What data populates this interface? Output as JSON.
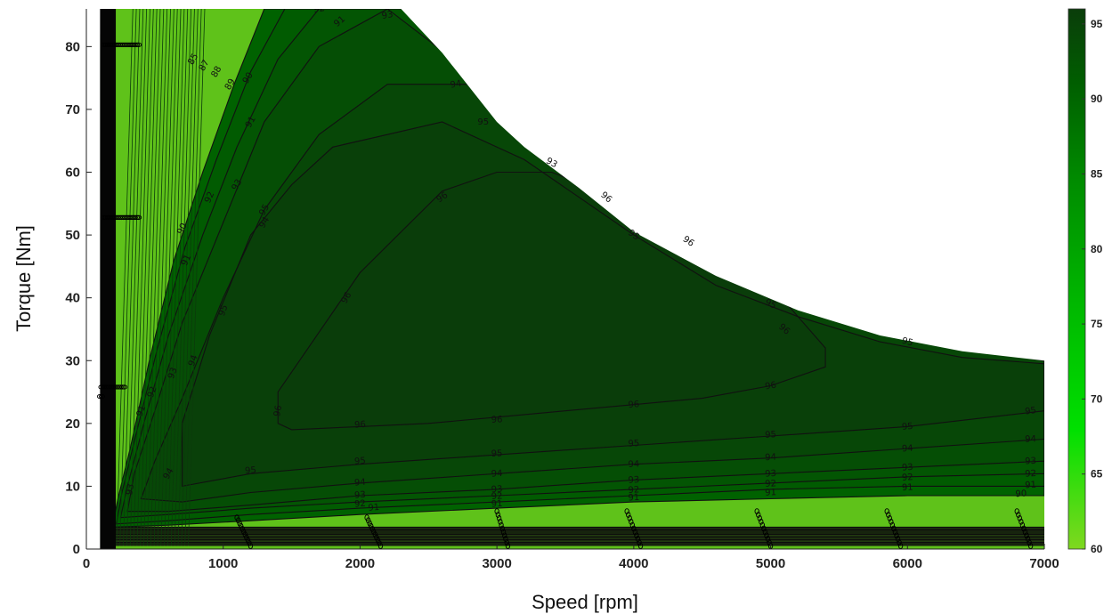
{
  "chart_data": {
    "type": "contour",
    "title": "",
    "xlabel": "Speed [rpm]",
    "ylabel": "Torque [Nm]",
    "xlim": [
      0,
      7000
    ],
    "ylim": [
      0,
      86
    ],
    "xticks": [
      0,
      1000,
      2000,
      3000,
      4000,
      5000,
      6000,
      7000
    ],
    "yticks": [
      0,
      10,
      20,
      30,
      40,
      50,
      60,
      70,
      80
    ],
    "grid": false,
    "colorbar": {
      "range": [
        60,
        96
      ],
      "ticks": [
        60,
        65,
        70,
        75,
        80,
        85,
        90,
        95
      ],
      "colors": [
        "#7fd81f",
        "#00e000",
        "#00b800",
        "#008c00",
        "#005f00",
        "#0a3d0a"
      ]
    },
    "torque_envelope": {
      "x": [
        100,
        100,
        150,
        300,
        700,
        1200,
        1700,
        2000,
        2300,
        2600,
        3000,
        3200,
        3600,
        4000,
        4600,
        5200,
        5800,
        6400,
        7000,
        7000
      ],
      "y": [
        0,
        82,
        86,
        86,
        86,
        86,
        86,
        86,
        86,
        79,
        68,
        64,
        57.5,
        50.5,
        43.5,
        38,
        34,
        31.5,
        30,
        0
      ]
    },
    "contours": [
      {
        "level": 96,
        "x": [
          1400,
          1400,
          2000,
          2600,
          3000,
          3400,
          4000,
          4600,
          5000,
          5400,
          5400,
          5000,
          4500,
          4000,
          3500,
          3000,
          2500,
          2000,
          1500,
          1400
        ],
        "y": [
          20,
          25,
          44,
          57,
          60,
          60,
          55,
          48,
          42,
          32,
          29,
          26,
          24,
          23,
          22,
          21,
          20,
          19.5,
          19,
          20
        ]
      },
      {
        "level": 95,
        "x": [
          700,
          700,
          900,
          1200,
          1500,
          1800,
          2200,
          2600,
          3000,
          3200,
          3600,
          4000,
          4600,
          5200,
          5800,
          6400,
          7000,
          7000,
          6000,
          5000,
          4000,
          3000,
          2000,
          1200,
          700
        ],
        "y": [
          10,
          20,
          34,
          50,
          58,
          64,
          66,
          68,
          64,
          62,
          56,
          50,
          42,
          37,
          33,
          30.5,
          29.5,
          22,
          19.5,
          18,
          16.5,
          15,
          13.5,
          12,
          10
        ]
      },
      {
        "level": 94,
        "x": [
          400,
          500,
          700,
          1000,
          1300,
          1700,
          2200,
          2800,
          3200,
          3600,
          4000,
          4600,
          5200,
          5800,
          6400,
          7000,
          7000,
          6000,
          5000,
          4000,
          3000,
          2000,
          1200,
          700,
          400
        ],
        "y": [
          8,
          14,
          24,
          40,
          54,
          66,
          74,
          74,
          68,
          60,
          54,
          46,
          40,
          35,
          32,
          30,
          17.5,
          16,
          14.5,
          13.5,
          12,
          10.5,
          9,
          7.5,
          8
        ]
      },
      {
        "level": 93,
        "x": [
          300,
          350,
          500,
          700,
          1000,
          1300,
          1700,
          2200,
          2800,
          3200,
          3600,
          4100,
          4700,
          5300,
          5900,
          6500,
          7000,
          7000,
          6000,
          5000,
          4000,
          3000,
          2000,
          1200,
          600,
          300
        ],
        "y": [
          6,
          12,
          22,
          36,
          52,
          68,
          80,
          86,
          76,
          68,
          61,
          54,
          46,
          40,
          35,
          32,
          30,
          14,
          13,
          12,
          11,
          9.5,
          8.5,
          7,
          6,
          6
        ]
      },
      {
        "level": 92,
        "x": [
          250,
          300,
          420,
          600,
          850,
          1100,
          1400,
          1700,
          7000,
          7000,
          6000,
          5000,
          4000,
          3000,
          2000,
          1200,
          600,
          250
        ],
        "y": [
          5,
          10,
          20,
          34,
          50,
          64,
          78,
          86,
          86,
          12,
          11.5,
          10.5,
          9.5,
          8.5,
          7.5,
          6.5,
          5.5,
          5
        ]
      },
      {
        "level": 91,
        "x": [
          220,
          260,
          360,
          520,
          720,
          950,
          1200,
          1450,
          7000,
          7000,
          6000,
          5000,
          4000,
          3000,
          2000,
          1200,
          600,
          220
        ],
        "y": [
          4,
          9,
          18,
          32,
          48,
          62,
          76,
          86,
          86,
          10,
          10,
          9.5,
          8.5,
          7.5,
          6.5,
          5.5,
          4.5,
          4
        ]
      },
      {
        "level": 90,
        "x": [
          190,
          230,
          320,
          460,
          640,
          850,
          1080,
          1300,
          7000,
          7000,
          6000,
          5000,
          4000,
          3000,
          2000,
          1200,
          600,
          190
        ],
        "y": [
          3.5,
          8,
          16,
          30,
          46,
          60,
          74,
          86,
          86,
          8.5,
          8.5,
          8,
          7.5,
          6.5,
          5.5,
          4.5,
          3.8,
          3.5
        ]
      }
    ],
    "contour_labels": [
      {
        "text": "96",
        "x": 2000,
        "y": 19.8,
        "rot": -3
      },
      {
        "text": "96",
        "x": 3000,
        "y": 20.6,
        "rot": -3
      },
      {
        "text": "96",
        "x": 4000,
        "y": 23,
        "rot": -4
      },
      {
        "text": "96",
        "x": 5000,
        "y": 26,
        "rot": -10
      },
      {
        "text": "96",
        "x": 1400,
        "y": 22,
        "rot": -80
      },
      {
        "text": "96",
        "x": 1900,
        "y": 40,
        "rot": -60
      },
      {
        "text": "96",
        "x": 2600,
        "y": 56,
        "rot": -35
      },
      {
        "text": "96",
        "x": 3800,
        "y": 56,
        "rot": 40
      },
      {
        "text": "96",
        "x": 4400,
        "y": 49,
        "rot": 35
      },
      {
        "text": "96",
        "x": 5100,
        "y": 35,
        "rot": 40
      },
      {
        "text": "95",
        "x": 1200,
        "y": 12.5,
        "rot": -5
      },
      {
        "text": "95",
        "x": 2000,
        "y": 14,
        "rot": -4
      },
      {
        "text": "95",
        "x": 3000,
        "y": 15.2,
        "rot": -3
      },
      {
        "text": "95",
        "x": 4000,
        "y": 16.8,
        "rot": -3
      },
      {
        "text": "95",
        "x": 5000,
        "y": 18.2,
        "rot": -3
      },
      {
        "text": "95",
        "x": 6000,
        "y": 19.5,
        "rot": -5
      },
      {
        "text": "95",
        "x": 6900,
        "y": 22,
        "rot": -8
      },
      {
        "text": "95",
        "x": 1000,
        "y": 38,
        "rot": -70
      },
      {
        "text": "95",
        "x": 1300,
        "y": 54,
        "rot": -60
      },
      {
        "text": "95",
        "x": 2900,
        "y": 68,
        "rot": 0
      },
      {
        "text": "95",
        "x": 4000,
        "y": 50,
        "rot": 35
      },
      {
        "text": "95",
        "x": 5000,
        "y": 39,
        "rot": 25
      },
      {
        "text": "95",
        "x": 6000,
        "y": 33,
        "rot": 15
      },
      {
        "text": "94",
        "x": 2000,
        "y": 10.6,
        "rot": -4
      },
      {
        "text": "94",
        "x": 3000,
        "y": 12,
        "rot": -3
      },
      {
        "text": "94",
        "x": 4000,
        "y": 13.5,
        "rot": -3
      },
      {
        "text": "94",
        "x": 5000,
        "y": 14.6,
        "rot": -3
      },
      {
        "text": "94",
        "x": 6000,
        "y": 16,
        "rot": -3
      },
      {
        "text": "94",
        "x": 6900,
        "y": 17.5,
        "rot": -3
      },
      {
        "text": "94",
        "x": 600,
        "y": 12,
        "rot": -60
      },
      {
        "text": "94",
        "x": 780,
        "y": 30,
        "rot": -70
      },
      {
        "text": "94",
        "x": 1300,
        "y": 52,
        "rot": -60
      },
      {
        "text": "94",
        "x": 2700,
        "y": 74,
        "rot": -10
      },
      {
        "text": "93",
        "x": 2000,
        "y": 8.6,
        "rot": -4
      },
      {
        "text": "93",
        "x": 3000,
        "y": 9.5,
        "rot": -3
      },
      {
        "text": "93",
        "x": 4000,
        "y": 11,
        "rot": -3
      },
      {
        "text": "93",
        "x": 5000,
        "y": 12,
        "rot": -3
      },
      {
        "text": "93",
        "x": 6000,
        "y": 13,
        "rot": -3
      },
      {
        "text": "93",
        "x": 6900,
        "y": 14,
        "rot": -3
      },
      {
        "text": "93",
        "x": 320,
        "y": 9.5,
        "rot": -80
      },
      {
        "text": "93",
        "x": 630,
        "y": 28,
        "rot": -70
      },
      {
        "text": "93",
        "x": 1100,
        "y": 58,
        "rot": -60
      },
      {
        "text": "93",
        "x": 2200,
        "y": 85,
        "rot": -10
      },
      {
        "text": "93",
        "x": 3400,
        "y": 61.5,
        "rot": 30
      },
      {
        "text": "92",
        "x": 2000,
        "y": 7.2,
        "rot": -4
      },
      {
        "text": "92",
        "x": 3000,
        "y": 8.4,
        "rot": -3
      },
      {
        "text": "92",
        "x": 4000,
        "y": 9.4,
        "rot": -3
      },
      {
        "text": "92",
        "x": 5000,
        "y": 10.4,
        "rot": -3
      },
      {
        "text": "92",
        "x": 6000,
        "y": 11.4,
        "rot": -3
      },
      {
        "text": "92",
        "x": 6900,
        "y": 12,
        "rot": -3
      },
      {
        "text": "92",
        "x": 480,
        "y": 25,
        "rot": -70
      },
      {
        "text": "92",
        "x": 900,
        "y": 56,
        "rot": -65
      },
      {
        "text": "92",
        "x": 1700,
        "y": 86,
        "rot": -10
      },
      {
        "text": "91",
        "x": 2100,
        "y": 6.6,
        "rot": -4
      },
      {
        "text": "91",
        "x": 3000,
        "y": 7.2,
        "rot": -3
      },
      {
        "text": "91",
        "x": 4000,
        "y": 8.2,
        "rot": -3
      },
      {
        "text": "91",
        "x": 5000,
        "y": 9,
        "rot": -3
      },
      {
        "text": "91",
        "x": 6000,
        "y": 9.8,
        "rot": -3
      },
      {
        "text": "91",
        "x": 6900,
        "y": 10.2,
        "rot": -3
      },
      {
        "text": "91",
        "x": 400,
        "y": 22,
        "rot": -70
      },
      {
        "text": "91",
        "x": 730,
        "y": 46,
        "rot": -65
      },
      {
        "text": "91",
        "x": 1200,
        "y": 68,
        "rot": -60
      },
      {
        "text": "91",
        "x": 1850,
        "y": 84,
        "rot": -40
      },
      {
        "text": "90",
        "x": 700,
        "y": 51,
        "rot": -65
      },
      {
        "text": "90",
        "x": 1180,
        "y": 75,
        "rot": -60
      },
      {
        "text": "90",
        "x": 6830,
        "y": 8.8,
        "rot": -3
      },
      {
        "text": "89",
        "x": 1050,
        "y": 74,
        "rot": -60
      },
      {
        "text": "88",
        "x": 950,
        "y": 76,
        "rot": -60
      },
      {
        "text": "87",
        "x": 860,
        "y": 77,
        "rot": -60
      },
      {
        "text": "85",
        "x": 780,
        "y": 78,
        "rot": -60
      }
    ],
    "marker_bands": [
      {
        "x0": 130,
        "x1": 390,
        "y": 80
      },
      {
        "x0": 130,
        "x1": 390,
        "y": 52.5
      },
      {
        "x0": 110,
        "x1": 280,
        "y": 25.5
      },
      {
        "x0": 100,
        "x1": 120,
        "y": 24
      }
    ],
    "marker_streaks": [
      {
        "x0": 1100,
        "x1": 1200,
        "y0": 5,
        "y1": 0.5
      },
      {
        "x0": 2050,
        "x1": 2150,
        "y0": 5,
        "y1": 0.5
      },
      {
        "x0": 3000,
        "x1": 3080,
        "y0": 6,
        "y1": 0.5
      },
      {
        "x0": 3950,
        "x1": 4050,
        "y0": 6,
        "y1": 0.5
      },
      {
        "x0": 4900,
        "x1": 5000,
        "y0": 6,
        "y1": 0.5
      },
      {
        "x0": 5850,
        "x1": 5950,
        "y0": 6,
        "y1": 0.5
      },
      {
        "x0": 6800,
        "x1": 6900,
        "y0": 6,
        "y1": 0.5
      }
    ]
  }
}
